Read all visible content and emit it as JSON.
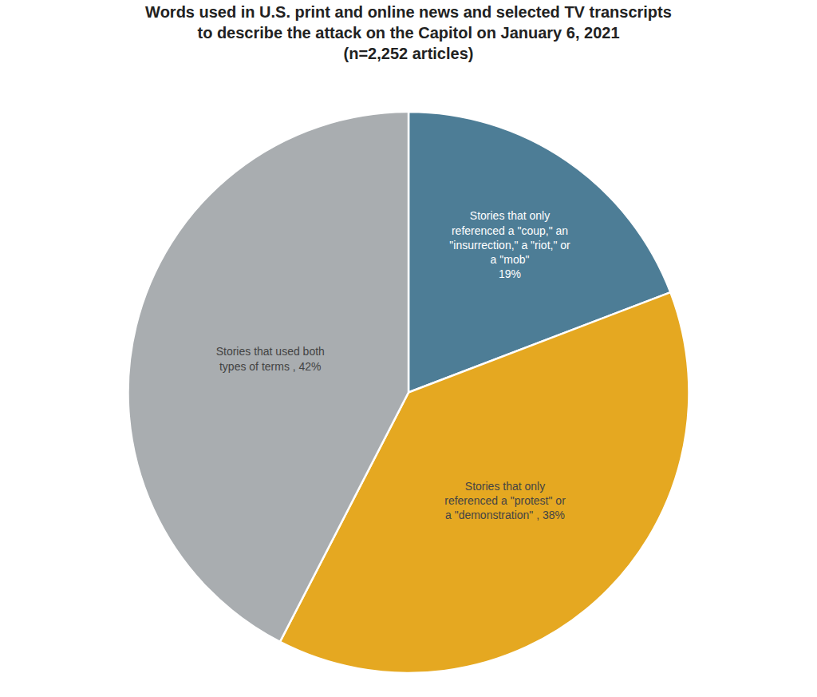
{
  "chart_data": {
    "type": "pie",
    "title": "Words used in U.S. print and online news and selected TV transcripts\nto describe the attack on the Capitol on January 6, 2021\n(n=2,252 articles)",
    "categories": [
      "Stories that only\nreferenced a \"coup,\" an\n\"insurrection,\" a \"riot,\" or\na \"mob\"\n19%",
      "Stories that only\nreferenced a \"protest\" or\na \"demonstration\" , 38%",
      "Stories that used both\ntypes of terms , 42%"
    ],
    "values": [
      19,
      38,
      42
    ],
    "colors": [
      "#4d7d96",
      "#e5a821",
      "#a9adb0"
    ],
    "legend": false
  }
}
